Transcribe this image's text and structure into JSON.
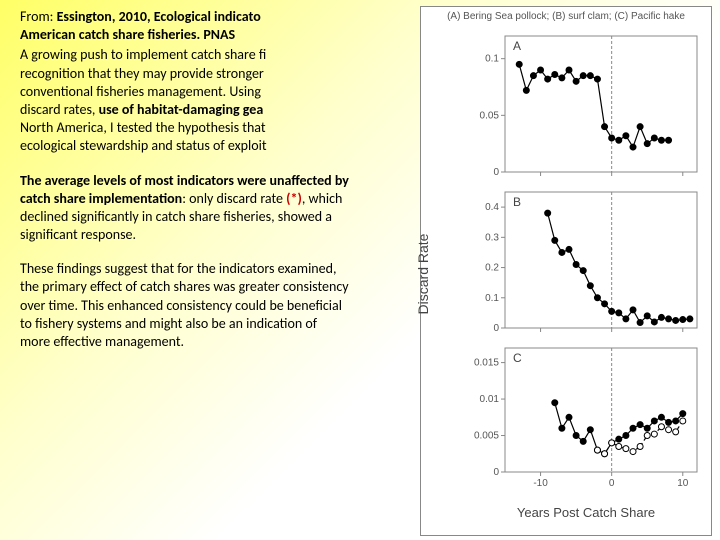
{
  "citation": {
    "prefix": "From: ",
    "bold_line": "Essington, 2010, Ecological indicato",
    "bold_line2": "American catch share fisheries. PNAS"
  },
  "abstract": {
    "line1": "A growing push to implement catch share fi",
    "line2": "recognition that they may provide stronger",
    "line3": "conventional fisheries management. Using",
    "line4_a": "discard rates, ",
    "line4_b": "use of habitat-damaging gea",
    "line5": "North America, I tested the hypothesis that",
    "line6": "ecological stewardship and status of exploit"
  },
  "para2": {
    "bold1": "The average levels of most indicators were unaffected by catch share implementation",
    "plain1": ": only discard rate ",
    "star": "(*)",
    "plain2": ", which declined significantly in catch share fisheries, showed a significant response."
  },
  "para3": "These findings suggest that for the indicators examined, the primary effect of catch shares was greater consistency over time. This enhanced consistency could be beneficial to fishery systems and might also be an indication of more effective management.",
  "figure": {
    "caption": "(A) Bering Sea pollock; (B) surf clam; (C) Pacific hake",
    "ylabel": "Discard Rate",
    "xlabel": "Years Post Catch Share",
    "xlim": [
      -15,
      12
    ],
    "xticks": [
      -10,
      0,
      10
    ],
    "panels": {
      "A": {
        "letter": "A",
        "ylim": [
          0,
          0.12
        ],
        "yticks": [
          0,
          0.05,
          0.1
        ],
        "solid_series": [
          {
            "x": -13,
            "y": 0.095
          },
          {
            "x": -12,
            "y": 0.072
          },
          {
            "x": -11,
            "y": 0.085
          },
          {
            "x": -10,
            "y": 0.09
          },
          {
            "x": -9,
            "y": 0.082
          },
          {
            "x": -8,
            "y": 0.086
          },
          {
            "x": -7,
            "y": 0.083
          },
          {
            "x": -6,
            "y": 0.09
          },
          {
            "x": -5,
            "y": 0.08
          },
          {
            "x": -4,
            "y": 0.085
          },
          {
            "x": -3,
            "y": 0.085
          },
          {
            "x": -2,
            "y": 0.082
          },
          {
            "x": -1,
            "y": 0.04
          },
          {
            "x": 0,
            "y": 0.03
          },
          {
            "x": 1,
            "y": 0.028
          },
          {
            "x": 2,
            "y": 0.032
          },
          {
            "x": 3,
            "y": 0.022
          },
          {
            "x": 4,
            "y": 0.04
          },
          {
            "x": 5,
            "y": 0.025
          },
          {
            "x": 6,
            "y": 0.03
          },
          {
            "x": 7,
            "y": 0.028
          },
          {
            "x": 8,
            "y": 0.028
          }
        ],
        "dashed_series": []
      },
      "B": {
        "letter": "B",
        "ylim": [
          0,
          0.45
        ],
        "yticks": [
          0,
          0.1,
          0.2,
          0.3,
          0.4
        ],
        "solid_series": [
          {
            "x": -9,
            "y": 0.38
          },
          {
            "x": -8,
            "y": 0.29
          },
          {
            "x": -7,
            "y": 0.25
          },
          {
            "x": -6,
            "y": 0.26
          },
          {
            "x": -5,
            "y": 0.21
          },
          {
            "x": -4,
            "y": 0.19
          },
          {
            "x": -3,
            "y": 0.14
          },
          {
            "x": -2,
            "y": 0.1
          },
          {
            "x": -1,
            "y": 0.08
          },
          {
            "x": 0,
            "y": 0.055
          },
          {
            "x": 1,
            "y": 0.05
          },
          {
            "x": 2,
            "y": 0.03
          },
          {
            "x": 3,
            "y": 0.06
          },
          {
            "x": 4,
            "y": 0.018
          },
          {
            "x": 5,
            "y": 0.04
          },
          {
            "x": 6,
            "y": 0.02
          },
          {
            "x": 7,
            "y": 0.035
          },
          {
            "x": 8,
            "y": 0.03
          },
          {
            "x": 9,
            "y": 0.025
          },
          {
            "x": 10,
            "y": 0.028
          },
          {
            "x": 11,
            "y": 0.03
          }
        ],
        "dashed_series": []
      },
      "C": {
        "letter": "C",
        "ylim": [
          0,
          0.017
        ],
        "yticks": [
          0,
          0.005,
          0.01,
          0.015
        ],
        "solid_series": [
          {
            "x": -8,
            "y": 0.0095
          },
          {
            "x": -7,
            "y": 0.006
          },
          {
            "x": -6,
            "y": 0.0075
          },
          {
            "x": -5,
            "y": 0.005
          },
          {
            "x": -4,
            "y": 0.0042
          },
          {
            "x": -3,
            "y": 0.0058
          },
          {
            "x": -2,
            "y": 0.003
          },
          {
            "x": -1,
            "y": 0.0025
          },
          {
            "x": 0,
            "y": 0.004
          },
          {
            "x": 1,
            "y": 0.0045
          },
          {
            "x": 2,
            "y": 0.005
          },
          {
            "x": 3,
            "y": 0.006
          },
          {
            "x": 4,
            "y": 0.0065
          },
          {
            "x": 5,
            "y": 0.006
          },
          {
            "x": 6,
            "y": 0.007
          },
          {
            "x": 7,
            "y": 0.0075
          },
          {
            "x": 8,
            "y": 0.0068
          },
          {
            "x": 9,
            "y": 0.007
          },
          {
            "x": 10,
            "y": 0.008
          }
        ],
        "dashed_series": [
          {
            "x": -2,
            "y": 0.003
          },
          {
            "x": -1,
            "y": 0.0025
          },
          {
            "x": 0,
            "y": 0.004
          },
          {
            "x": 1,
            "y": 0.0035
          },
          {
            "x": 2,
            "y": 0.0032
          },
          {
            "x": 3,
            "y": 0.0028
          },
          {
            "x": 4,
            "y": 0.0035
          },
          {
            "x": 5,
            "y": 0.005
          },
          {
            "x": 6,
            "y": 0.0052
          },
          {
            "x": 7,
            "y": 0.0062
          },
          {
            "x": 8,
            "y": 0.0058
          },
          {
            "x": 9,
            "y": 0.0055
          },
          {
            "x": 10,
            "y": 0.007
          }
        ]
      }
    },
    "marker_fill": "#000000",
    "marker_open_fill": "#ffffff",
    "marker_stroke": "#000000",
    "marker_radius": 3,
    "axis_color": "#888888",
    "background_color": "#ffffff"
  }
}
